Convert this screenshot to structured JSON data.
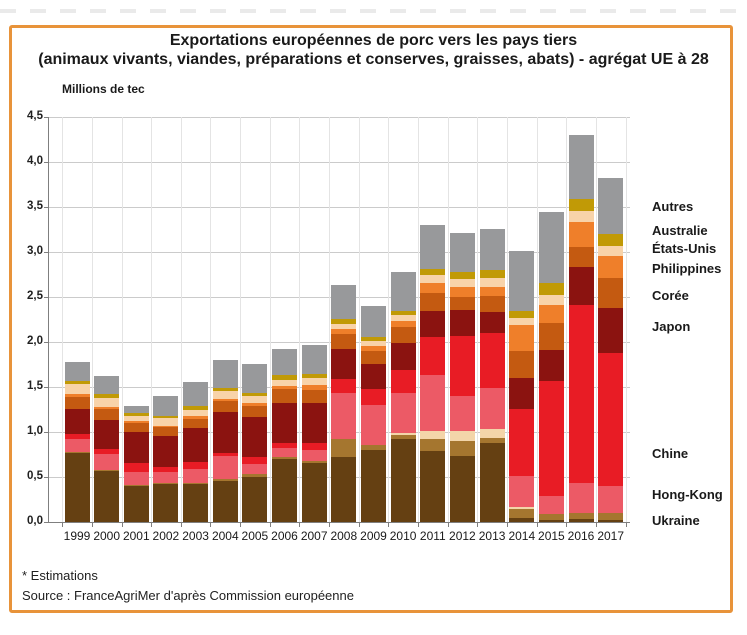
{
  "page": {
    "frame_color": "#e8933a",
    "background": "#ffffff"
  },
  "header": {
    "title_line1": "Exportations européennes de porc vers les pays tiers",
    "title_line2": "(animaux vivants, viandes, préparations et conserves, graisses, abats) - agrégat UE à 28"
  },
  "footer": {
    "estimations": "* Estimations",
    "source": "Source : FranceAgriMer d'après Commission européenne"
  },
  "chart_data": {
    "type": "bar",
    "stacked": true,
    "title": "Exportations européennes de porc vers les pays tiers (animaux vivants, viandes, préparations et conserves, graisses, abats) - agrégat UE à 28",
    "ylabel": "Millions de tec",
    "xlabel": "",
    "ylim": [
      0,
      4.5
    ],
    "ytick_step": 0.5,
    "ytick_labels": [
      "0,0",
      "0,5",
      "1,0",
      "1,5",
      "2,0",
      "2,5",
      "3,0",
      "3,5",
      "4,0",
      "4,5"
    ],
    "grid": true,
    "legend_position": "right",
    "categories": [
      "1999",
      "2000",
      "2001",
      "2002",
      "2003",
      "2004",
      "2005",
      "2006",
      "2007",
      "2008",
      "2009",
      "2010",
      "2011",
      "2012",
      "2013",
      "2014",
      "2015",
      "2016",
      "2017"
    ],
    "series": [
      {
        "id": "brown_unlabeled",
        "label": "",
        "color": "#654012",
        "values": [
          0.77,
          0.56,
          0.4,
          0.42,
          0.42,
          0.46,
          0.5,
          0.7,
          0.66,
          0.72,
          0.8,
          0.92,
          0.79,
          0.73,
          0.88,
          0.04,
          0.02,
          0.03,
          0.02
        ]
      },
      {
        "id": "ukraine",
        "label": "Ukraine",
        "color": "#a5762f",
        "values": [
          0.01,
          0.01,
          0.01,
          0.01,
          0.01,
          0.02,
          0.03,
          0.02,
          0.02,
          0.2,
          0.05,
          0.05,
          0.13,
          0.17,
          0.05,
          0.1,
          0.06,
          0.07,
          0.08
        ]
      },
      {
        "id": "cream_unlabeled",
        "label": "",
        "color": "#f3d5a9",
        "values": [
          0,
          0,
          0,
          0,
          0,
          0,
          0,
          0,
          0,
          0,
          0,
          0.02,
          0.09,
          0.11,
          0.11,
          0.03,
          0,
          0,
          0
        ]
      },
      {
        "id": "hong_kong",
        "label": "Hong-Kong",
        "color": "#ec5a66",
        "values": [
          0.14,
          0.18,
          0.15,
          0.13,
          0.16,
          0.25,
          0.12,
          0.1,
          0.12,
          0.51,
          0.45,
          0.44,
          0.62,
          0.39,
          0.45,
          0.34,
          0.2,
          0.33,
          0.3
        ]
      },
      {
        "id": "chine",
        "label": "Chine",
        "color": "#e81c25",
        "values": [
          0.06,
          0.06,
          0.1,
          0.05,
          0.08,
          0.04,
          0.07,
          0.05,
          0.08,
          0.15,
          0.18,
          0.26,
          0.43,
          0.67,
          0.61,
          0.74,
          1.28,
          1.98,
          1.47
        ]
      },
      {
        "id": "japon",
        "label": "Japon",
        "color": "#8b1310",
        "values": [
          0.28,
          0.32,
          0.34,
          0.34,
          0.38,
          0.45,
          0.45,
          0.45,
          0.44,
          0.34,
          0.28,
          0.3,
          0.28,
          0.28,
          0.24,
          0.35,
          0.35,
          0.42,
          0.5
        ]
      },
      {
        "id": "coree",
        "label": "Corée",
        "color": "#c45a11",
        "values": [
          0.13,
          0.12,
          0.1,
          0.1,
          0.1,
          0.12,
          0.12,
          0.15,
          0.15,
          0.16,
          0.14,
          0.18,
          0.2,
          0.15,
          0.17,
          0.3,
          0.3,
          0.23,
          0.34
        ]
      },
      {
        "id": "philippines",
        "label": "Philippines",
        "color": "#ef7f2a",
        "values": [
          0.03,
          0.03,
          0.02,
          0.02,
          0.03,
          0.03,
          0.04,
          0.04,
          0.05,
          0.06,
          0.05,
          0.06,
          0.11,
          0.11,
          0.11,
          0.29,
          0.2,
          0.27,
          0.24
        ]
      },
      {
        "id": "etats_unis",
        "label": "États-Unis",
        "color": "#f8d3a9",
        "values": [
          0.11,
          0.1,
          0.06,
          0.08,
          0.07,
          0.08,
          0.07,
          0.07,
          0.08,
          0.06,
          0.06,
          0.07,
          0.09,
          0.09,
          0.09,
          0.08,
          0.11,
          0.13,
          0.11
        ]
      },
      {
        "id": "australie",
        "label": "Australie",
        "color": "#c19a06",
        "values": [
          0.04,
          0.04,
          0.03,
          0.03,
          0.04,
          0.04,
          0.04,
          0.05,
          0.05,
          0.05,
          0.05,
          0.05,
          0.07,
          0.08,
          0.09,
          0.07,
          0.13,
          0.13,
          0.14
        ]
      },
      {
        "id": "autres",
        "label": "Autres",
        "color": "#98999b",
        "values": [
          0.21,
          0.2,
          0.08,
          0.22,
          0.27,
          0.31,
          0.32,
          0.29,
          0.32,
          0.38,
          0.34,
          0.43,
          0.49,
          0.43,
          0.46,
          0.67,
          0.79,
          0.71,
          0.62
        ]
      }
    ],
    "legend": [
      {
        "series": "autres",
        "label": "Autres"
      },
      {
        "series": "australie",
        "label": "Australie"
      },
      {
        "series": "etats_unis",
        "label": "États-Unis"
      },
      {
        "series": "philippines",
        "label": "Philippines"
      },
      {
        "series": "coree",
        "label": "Corée"
      },
      {
        "series": "japon",
        "label": "Japon"
      },
      {
        "series": "chine",
        "label": "Chine"
      },
      {
        "series": "hong_kong",
        "label": "Hong-Kong"
      },
      {
        "series": "ukraine",
        "label": "Ukraine"
      }
    ]
  }
}
